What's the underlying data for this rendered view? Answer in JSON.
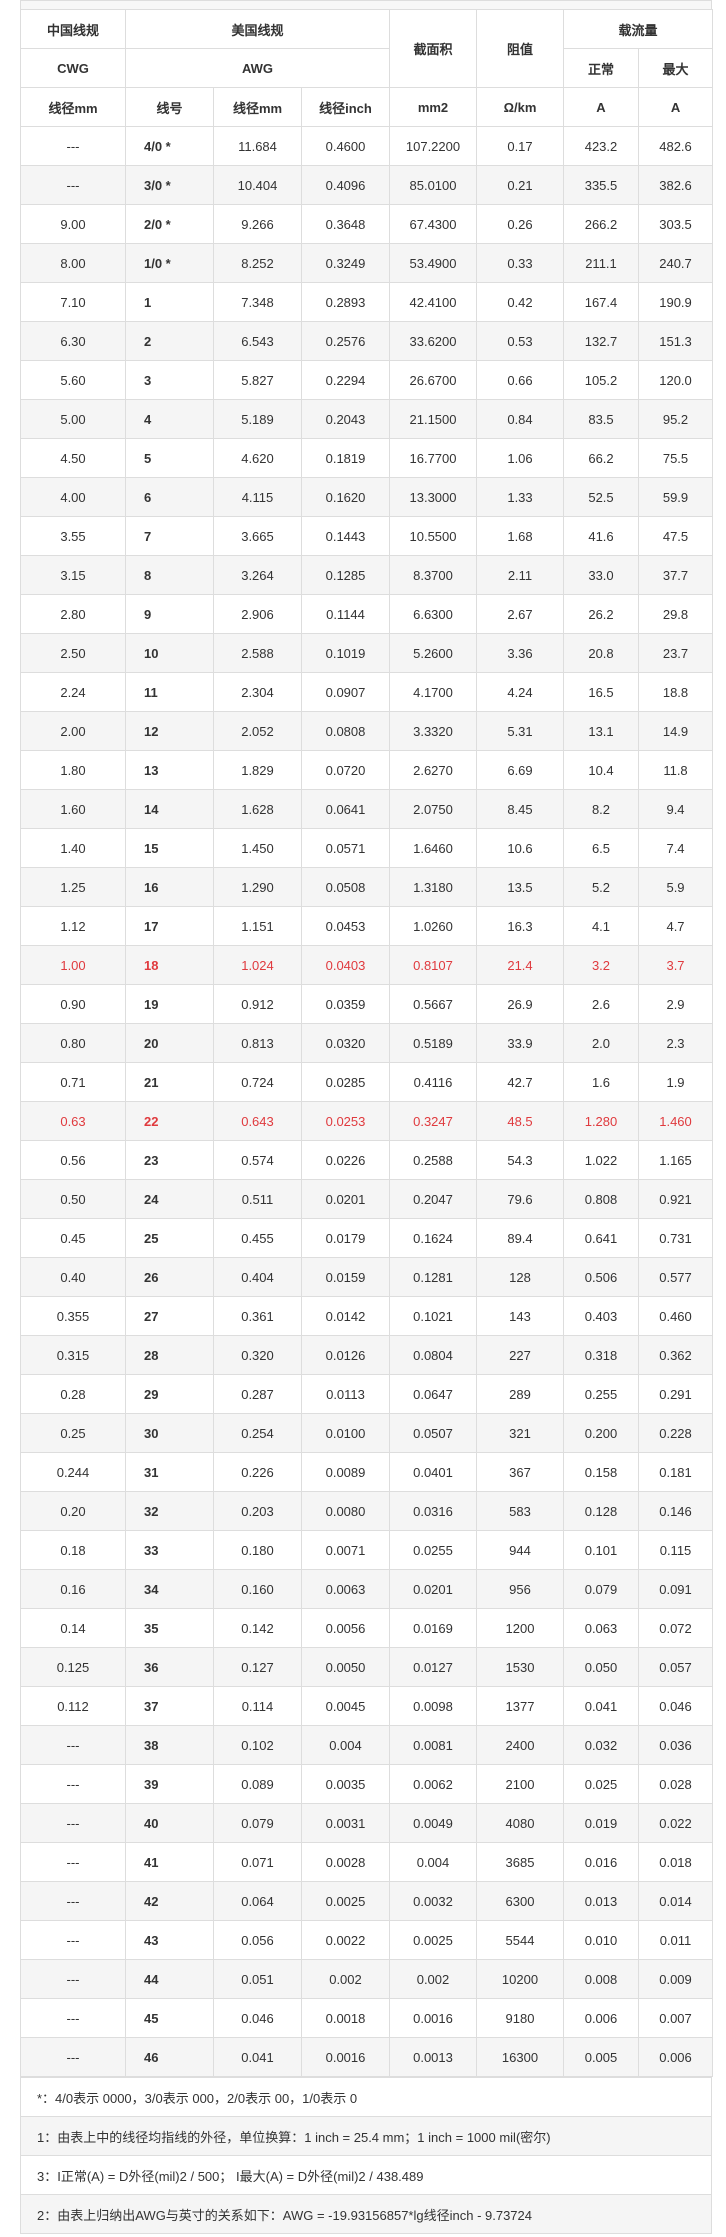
{
  "header": {
    "china_spec": "中国线规",
    "us_spec": "美国线规",
    "area": "截面积",
    "resistance": "阻值",
    "ampacity": "载流量",
    "cwg": "CWG",
    "awg": "AWG",
    "normal": "正常",
    "max": "最大",
    "col_cwg_mm": "线径mm",
    "col_awg_no": "线号",
    "col_awg_mm": "线径mm",
    "col_awg_inch": "线径inch",
    "col_area_unit": "mm2",
    "col_res_unit": "Ω/km",
    "col_a1": "A",
    "col_a2": "A"
  },
  "rows": [
    {
      "cwg": "---",
      "awg": "4/0 *",
      "mm": "11.684",
      "inch": "0.4600",
      "area": "107.2200",
      "res": "0.17",
      "normal": "423.2",
      "max": "482.6",
      "red": false
    },
    {
      "cwg": "---",
      "awg": "3/0 *",
      "mm": "10.404",
      "inch": "0.4096",
      "area": "85.0100",
      "res": "0.21",
      "normal": "335.5",
      "max": "382.6",
      "red": false
    },
    {
      "cwg": "9.00",
      "awg": "2/0 *",
      "mm": "9.266",
      "inch": "0.3648",
      "area": "67.4300",
      "res": "0.26",
      "normal": "266.2",
      "max": "303.5",
      "red": false
    },
    {
      "cwg": "8.00",
      "awg": "1/0 *",
      "mm": "8.252",
      "inch": "0.3249",
      "area": "53.4900",
      "res": "0.33",
      "normal": "211.1",
      "max": "240.7",
      "red": false
    },
    {
      "cwg": "7.10",
      "awg": "1",
      "mm": "7.348",
      "inch": "0.2893",
      "area": "42.4100",
      "res": "0.42",
      "normal": "167.4",
      "max": "190.9",
      "red": false
    },
    {
      "cwg": "6.30",
      "awg": "2",
      "mm": "6.543",
      "inch": "0.2576",
      "area": "33.6200",
      "res": "0.53",
      "normal": "132.7",
      "max": "151.3",
      "red": false
    },
    {
      "cwg": "5.60",
      "awg": "3",
      "mm": "5.827",
      "inch": "0.2294",
      "area": "26.6700",
      "res": "0.66",
      "normal": "105.2",
      "max": "120.0",
      "red": false
    },
    {
      "cwg": "5.00",
      "awg": "4",
      "mm": "5.189",
      "inch": "0.2043",
      "area": "21.1500",
      "res": "0.84",
      "normal": "83.5",
      "max": "95.2",
      "red": false
    },
    {
      "cwg": "4.50",
      "awg": "5",
      "mm": "4.620",
      "inch": "0.1819",
      "area": "16.7700",
      "res": "1.06",
      "normal": "66.2",
      "max": "75.5",
      "red": false
    },
    {
      "cwg": "4.00",
      "awg": "6",
      "mm": "4.115",
      "inch": "0.1620",
      "area": "13.3000",
      "res": "1.33",
      "normal": "52.5",
      "max": "59.9",
      "red": false
    },
    {
      "cwg": "3.55",
      "awg": "7",
      "mm": "3.665",
      "inch": "0.1443",
      "area": "10.5500",
      "res": "1.68",
      "normal": "41.6",
      "max": "47.5",
      "red": false
    },
    {
      "cwg": "3.15",
      "awg": "8",
      "mm": "3.264",
      "inch": "0.1285",
      "area": "8.3700",
      "res": "2.11",
      "normal": "33.0",
      "max": "37.7",
      "red": false
    },
    {
      "cwg": "2.80",
      "awg": "9",
      "mm": "2.906",
      "inch": "0.1144",
      "area": "6.6300",
      "res": "2.67",
      "normal": "26.2",
      "max": "29.8",
      "red": false
    },
    {
      "cwg": "2.50",
      "awg": "10",
      "mm": "2.588",
      "inch": "0.1019",
      "area": "5.2600",
      "res": "3.36",
      "normal": "20.8",
      "max": "23.7",
      "red": false
    },
    {
      "cwg": "2.24",
      "awg": "11",
      "mm": "2.304",
      "inch": "0.0907",
      "area": "4.1700",
      "res": "4.24",
      "normal": "16.5",
      "max": "18.8",
      "red": false
    },
    {
      "cwg": "2.00",
      "awg": "12",
      "mm": "2.052",
      "inch": "0.0808",
      "area": "3.3320",
      "res": "5.31",
      "normal": "13.1",
      "max": "14.9",
      "red": false
    },
    {
      "cwg": "1.80",
      "awg": "13",
      "mm": "1.829",
      "inch": "0.0720",
      "area": "2.6270",
      "res": "6.69",
      "normal": "10.4",
      "max": "11.8",
      "red": false
    },
    {
      "cwg": "1.60",
      "awg": "14",
      "mm": "1.628",
      "inch": "0.0641",
      "area": "2.0750",
      "res": "8.45",
      "normal": "8.2",
      "max": "9.4",
      "red": false
    },
    {
      "cwg": "1.40",
      "awg": "15",
      "mm": "1.450",
      "inch": "0.0571",
      "area": "1.6460",
      "res": "10.6",
      "normal": "6.5",
      "max": "7.4",
      "red": false
    },
    {
      "cwg": "1.25",
      "awg": "16",
      "mm": "1.290",
      "inch": "0.0508",
      "area": "1.3180",
      "res": "13.5",
      "normal": "5.2",
      "max": "5.9",
      "red": false
    },
    {
      "cwg": "1.12",
      "awg": "17",
      "mm": "1.151",
      "inch": "0.0453",
      "area": "1.0260",
      "res": "16.3",
      "normal": "4.1",
      "max": "4.7",
      "red": false
    },
    {
      "cwg": "1.00",
      "awg": "18",
      "mm": "1.024",
      "inch": "0.0403",
      "area": "0.8107",
      "res": "21.4",
      "normal": "3.2",
      "max": "3.7",
      "red": true
    },
    {
      "cwg": "0.90",
      "awg": "19",
      "mm": "0.912",
      "inch": "0.0359",
      "area": "0.5667",
      "res": "26.9",
      "normal": "2.6",
      "max": "2.9",
      "red": false
    },
    {
      "cwg": "0.80",
      "awg": "20",
      "mm": "0.813",
      "inch": "0.0320",
      "area": "0.5189",
      "res": "33.9",
      "normal": "2.0",
      "max": "2.3",
      "red": false
    },
    {
      "cwg": "0.71",
      "awg": "21",
      "mm": "0.724",
      "inch": "0.0285",
      "area": "0.4116",
      "res": "42.7",
      "normal": "1.6",
      "max": "1.9",
      "red": false
    },
    {
      "cwg": "0.63",
      "awg": "22",
      "mm": "0.643",
      "inch": "0.0253",
      "area": "0.3247",
      "res": "48.5",
      "normal": "1.280",
      "max": "1.460",
      "red": true
    },
    {
      "cwg": "0.56",
      "awg": "23",
      "mm": "0.574",
      "inch": "0.0226",
      "area": "0.2588",
      "res": "54.3",
      "normal": "1.022",
      "max": "1.165",
      "red": false
    },
    {
      "cwg": "0.50",
      "awg": "24",
      "mm": "0.511",
      "inch": "0.0201",
      "area": "0.2047",
      "res": "79.6",
      "normal": "0.808",
      "max": "0.921",
      "red": false
    },
    {
      "cwg": "0.45",
      "awg": "25",
      "mm": "0.455",
      "inch": "0.0179",
      "area": "0.1624",
      "res": "89.4",
      "normal": "0.641",
      "max": "0.731",
      "red": false
    },
    {
      "cwg": "0.40",
      "awg": "26",
      "mm": "0.404",
      "inch": "0.0159",
      "area": "0.1281",
      "res": "128",
      "normal": "0.506",
      "max": "0.577",
      "red": false
    },
    {
      "cwg": "0.355",
      "awg": "27",
      "mm": "0.361",
      "inch": "0.0142",
      "area": "0.1021",
      "res": "143",
      "normal": "0.403",
      "max": "0.460",
      "red": false
    },
    {
      "cwg": "0.315",
      "awg": "28",
      "mm": "0.320",
      "inch": "0.0126",
      "area": "0.0804",
      "res": "227",
      "normal": "0.318",
      "max": "0.362",
      "red": false
    },
    {
      "cwg": "0.28",
      "awg": "29",
      "mm": "0.287",
      "inch": "0.0113",
      "area": "0.0647",
      "res": "289",
      "normal": "0.255",
      "max": "0.291",
      "red": false
    },
    {
      "cwg": "0.25",
      "awg": "30",
      "mm": "0.254",
      "inch": "0.0100",
      "area": "0.0507",
      "res": "321",
      "normal": "0.200",
      "max": "0.228",
      "red": false
    },
    {
      "cwg": "0.244",
      "awg": "31",
      "mm": "0.226",
      "inch": "0.0089",
      "area": "0.0401",
      "res": "367",
      "normal": "0.158",
      "max": "0.181",
      "red": false
    },
    {
      "cwg": "0.20",
      "awg": "32",
      "mm": "0.203",
      "inch": "0.0080",
      "area": "0.0316",
      "res": "583",
      "normal": "0.128",
      "max": "0.146",
      "red": false
    },
    {
      "cwg": "0.18",
      "awg": "33",
      "mm": "0.180",
      "inch": "0.0071",
      "area": "0.0255",
      "res": "944",
      "normal": "0.101",
      "max": "0.115",
      "red": false
    },
    {
      "cwg": "0.16",
      "awg": "34",
      "mm": "0.160",
      "inch": "0.0063",
      "area": "0.0201",
      "res": "956",
      "normal": "0.079",
      "max": "0.091",
      "red": false
    },
    {
      "cwg": "0.14",
      "awg": "35",
      "mm": "0.142",
      "inch": "0.0056",
      "area": "0.0169",
      "res": "1200",
      "normal": "0.063",
      "max": "0.072",
      "red": false
    },
    {
      "cwg": "0.125",
      "awg": "36",
      "mm": "0.127",
      "inch": "0.0050",
      "area": "0.0127",
      "res": "1530",
      "normal": "0.050",
      "max": "0.057",
      "red": false
    },
    {
      "cwg": "0.112",
      "awg": "37",
      "mm": "0.114",
      "inch": "0.0045",
      "area": "0.0098",
      "res": "1377",
      "normal": "0.041",
      "max": "0.046",
      "red": false
    },
    {
      "cwg": "---",
      "awg": "38",
      "mm": "0.102",
      "inch": "0.004",
      "area": "0.0081",
      "res": "2400",
      "normal": "0.032",
      "max": "0.036",
      "red": false
    },
    {
      "cwg": "---",
      "awg": "39",
      "mm": "0.089",
      "inch": "0.0035",
      "area": "0.0062",
      "res": "2100",
      "normal": "0.025",
      "max": "0.028",
      "red": false
    },
    {
      "cwg": "---",
      "awg": "40",
      "mm": "0.079",
      "inch": "0.0031",
      "area": "0.0049",
      "res": "4080",
      "normal": "0.019",
      "max": "0.022",
      "red": false
    },
    {
      "cwg": "---",
      "awg": "41",
      "mm": "0.071",
      "inch": "0.0028",
      "area": "0.004",
      "res": "3685",
      "normal": "0.016",
      "max": "0.018",
      "red": false
    },
    {
      "cwg": "---",
      "awg": "42",
      "mm": "0.064",
      "inch": "0.0025",
      "area": "0.0032",
      "res": "6300",
      "normal": "0.013",
      "max": "0.014",
      "red": false
    },
    {
      "cwg": "---",
      "awg": "43",
      "mm": "0.056",
      "inch": "0.0022",
      "area": "0.0025",
      "res": "5544",
      "normal": "0.010",
      "max": "0.011",
      "red": false
    },
    {
      "cwg": "---",
      "awg": "44",
      "mm": "0.051",
      "inch": "0.002",
      "area": "0.002",
      "res": "10200",
      "normal": "0.008",
      "max": "0.009",
      "red": false
    },
    {
      "cwg": "---",
      "awg": "45",
      "mm": "0.046",
      "inch": "0.0018",
      "area": "0.0016",
      "res": "9180",
      "normal": "0.006",
      "max": "0.007",
      "red": false
    },
    {
      "cwg": "---",
      "awg": "46",
      "mm": "0.041",
      "inch": "0.0016",
      "area": "0.0013",
      "res": "16300",
      "normal": "0.005",
      "max": "0.006",
      "red": false
    }
  ],
  "notes": [
    "*：4/0表示 0000，3/0表示 000，2/0表示 00，1/0表示 0",
    "1：由表上中的线径均指线的外径，单位换算：1 inch = 25.4 mm；1 inch = 1000 mil(密尔)",
    "3：I正常(A) = D外径(mil)2 / 500；  I最大(A) = D外径(mil)2 / 438.489",
    "2：由表上归纳出AWG与英寸的关系如下：AWG = -19.93156857*lg线径inch - 9.73724"
  ],
  "colors": {
    "highlight_red": "#e03a3e",
    "border": "#dddddd",
    "stripe": "#f5f5f5"
  }
}
